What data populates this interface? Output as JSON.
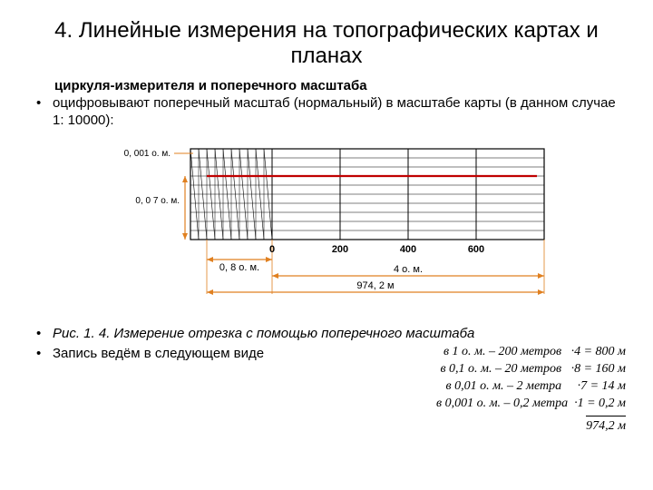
{
  "title": "4. Линейные измерения на топографических картах и планах",
  "subtitle": "циркуля-измерителя и поперечного масштаба",
  "bullet1": "оцифровывают поперечный масштаб (нормальный) в масштабе карты (в данном случае 1: 10000):",
  "caption": "Рис. 1. 4. Измерение отрезка с помощью поперечного масштаба",
  "bullet3": "Запись ведём в следующем виде",
  "diagram": {
    "axis_ticks": [
      "0",
      "200",
      "400",
      "600"
    ],
    "label_left_top": "0, 001 о. м.",
    "label_left_mid": "0, 0 7 о. м.",
    "label_bottom_small": "0, 8 о. м.",
    "label_bottom_big": "4 о. м.",
    "label_result": "974, 2 м",
    "line_color": "#c00000",
    "arrow_color": "#e08020",
    "grid_color": "#000000",
    "bg": "#ffffff",
    "n_horiz": 10,
    "n_fine_vert": 10
  },
  "equations": {
    "row1_left": "в 1 о. м. – 200 метров",
    "row1_right": "·4 = 800 м",
    "row2_left": "в 0,1 о. м. – 20 метров",
    "row2_right": "·8 = 160 м",
    "row3_left": "в 0,01 о. м. – 2 метра",
    "row3_right": "·7 = 14 м",
    "row4_left": "в 0,001 о. м. – 0,2 метра",
    "row4_right": "·1 = 0,2 м",
    "answer": "974,2 м"
  }
}
